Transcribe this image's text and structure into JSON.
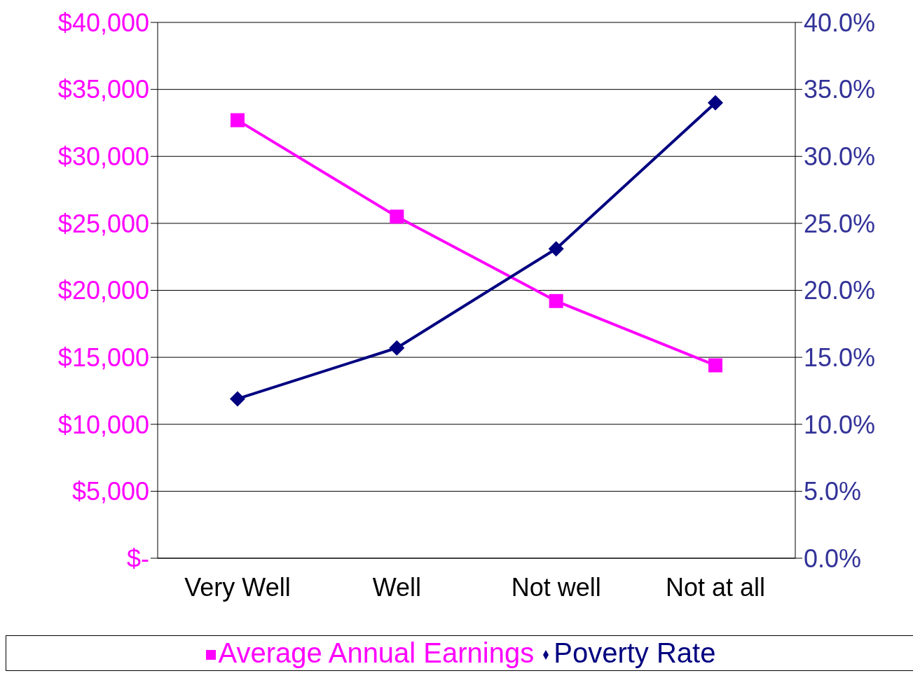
{
  "chart_data": {
    "type": "line",
    "categories": [
      "Very Well",
      "Well",
      "Not well",
      "Not at all"
    ],
    "series": [
      {
        "name": "Average Annual Earnings",
        "color": "#ff00ff",
        "marker": "square",
        "values": [
          32700,
          25500,
          19200,
          14400
        ]
      },
      {
        "name": "Poverty Rate",
        "color": "#000080",
        "marker": "diamond",
        "axis": "y2",
        "values": [
          11.9,
          15.7,
          23.1,
          34.0
        ]
      }
    ],
    "ylim": [
      0,
      40000
    ],
    "yticks": [
      {
        "value": 0,
        "label": "$-"
      },
      {
        "value": 5000,
        "label": "$5,000"
      },
      {
        "value": 10000,
        "label": "$10,000"
      },
      {
        "value": 15000,
        "label": "$15,000"
      },
      {
        "value": 20000,
        "label": "$20,000"
      },
      {
        "value": 25000,
        "label": "$25,000"
      },
      {
        "value": 30000,
        "label": "$30,000"
      },
      {
        "value": 35000,
        "label": "$35,000"
      },
      {
        "value": 40000,
        "label": "$40,000"
      }
    ],
    "y2lim": [
      0,
      40
    ],
    "y2ticks": [
      {
        "value": 0,
        "label": "0.0%"
      },
      {
        "value": 5,
        "label": "5.0%"
      },
      {
        "value": 10,
        "label": "10.0%"
      },
      {
        "value": 15,
        "label": "15.0%"
      },
      {
        "value": 20,
        "label": "20.0%"
      },
      {
        "value": 25,
        "label": "25.0%"
      },
      {
        "value": 30,
        "label": "30.0%"
      },
      {
        "value": 35,
        "label": "35.0%"
      },
      {
        "value": 40,
        "label": "40.0%"
      }
    ],
    "grid": "y",
    "legend": "bottom",
    "line_style": "solid"
  }
}
